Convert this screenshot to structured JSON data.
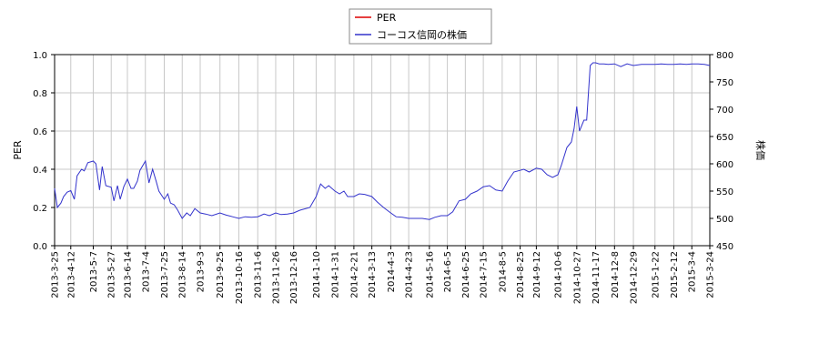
{
  "chart_data": {
    "type": "line",
    "title": "",
    "xlabel": "",
    "ylabel_left": "PER",
    "ylabel_right": "株価",
    "ylim_left": [
      0.0,
      1.0
    ],
    "yticks_left": [
      "0.0",
      "0.2",
      "0.4",
      "0.6",
      "0.8",
      "1.0"
    ],
    "ylim_right": [
      450,
      800
    ],
    "yticks_right": [
      "450",
      "500",
      "550",
      "600",
      "650",
      "700",
      "750",
      "800"
    ],
    "x_range": [
      "2013-3-25",
      "2015-3-24"
    ],
    "x_tick_labels": [
      "2013-3-25",
      "2013-4-12",
      "2013-5-7",
      "2013-5-27",
      "2013-6-14",
      "2013-7-4",
      "2013-7-25",
      "2013-8-14",
      "2013-9-3",
      "2013-9-25",
      "2013-10-16",
      "2013-11-6",
      "2013-11-26",
      "2013-12-16",
      "2014-1-10",
      "2014-1-31",
      "2014-2-21",
      "2014-3-13",
      "2014-4-3",
      "2014-4-23",
      "2014-5-16",
      "2014-6-5",
      "2014-6-25",
      "2014-7-15",
      "2014-8-5",
      "2014-8-25",
      "2014-9-12",
      "2014-10-6",
      "2014-10-27",
      "2014-11-17",
      "2014-12-8",
      "2014-12-29",
      "2015-1-22",
      "2015-2-12",
      "2015-3-4",
      "2015-3-24"
    ],
    "grid": true,
    "legend_position": "top-center",
    "series": [
      {
        "name": "PER",
        "axis": "left",
        "color": "#dd0000",
        "x": [],
        "values": []
      },
      {
        "name": "コーコス信岡の株価",
        "axis": "right",
        "color": "#3333cc",
        "x": [
          "2013-3-25",
          "2013-3-28",
          "2013-4-1",
          "2013-4-4",
          "2013-4-8",
          "2013-4-12",
          "2013-4-16",
          "2013-4-19",
          "2013-4-24",
          "2013-4-27",
          "2013-5-1",
          "2013-5-7",
          "2013-5-10",
          "2013-5-14",
          "2013-5-17",
          "2013-5-21",
          "2013-5-27",
          "2013-5-30",
          "2013-6-3",
          "2013-6-6",
          "2013-6-10",
          "2013-6-14",
          "2013-6-18",
          "2013-6-21",
          "2013-6-25",
          "2013-6-28",
          "2013-7-4",
          "2013-7-8",
          "2013-7-12",
          "2013-7-16",
          "2013-7-19",
          "2013-7-25",
          "2013-7-29",
          "2013-8-1",
          "2013-8-5",
          "2013-8-9",
          "2013-8-14",
          "2013-8-19",
          "2013-8-23",
          "2013-8-28",
          "2013-9-3",
          "2013-9-9",
          "2013-9-16",
          "2013-9-25",
          "2013-10-2",
          "2013-10-9",
          "2013-10-16",
          "2013-10-23",
          "2013-10-30",
          "2013-11-6",
          "2013-11-13",
          "2013-11-19",
          "2013-11-26",
          "2013-12-2",
          "2013-12-9",
          "2013-12-16",
          "2013-12-23",
          "2014-1-3",
          "2014-1-10",
          "2014-1-15",
          "2014-1-20",
          "2014-1-24",
          "2014-1-31",
          "2014-2-5",
          "2014-2-10",
          "2014-2-14",
          "2014-2-21",
          "2014-2-27",
          "2014-3-5",
          "2014-3-13",
          "2014-3-19",
          "2014-3-26",
          "2014-4-3",
          "2014-4-9",
          "2014-4-16",
          "2014-4-23",
          "2014-4-30",
          "2014-5-8",
          "2014-5-16",
          "2014-5-22",
          "2014-5-29",
          "2014-6-5",
          "2014-6-11",
          "2014-6-18",
          "2014-6-25",
          "2014-7-1",
          "2014-7-8",
          "2014-7-15",
          "2014-7-22",
          "2014-7-29",
          "2014-8-5",
          "2014-8-11",
          "2014-8-18",
          "2014-8-25",
          "2014-8-29",
          "2014-9-4",
          "2014-9-12",
          "2014-9-18",
          "2014-9-24",
          "2014-9-30",
          "2014-10-6",
          "2014-10-10",
          "2014-10-16",
          "2014-10-21",
          "2014-10-24",
          "2014-10-27",
          "2014-10-30",
          "2014-11-4",
          "2014-11-7",
          "2014-11-11",
          "2014-11-14",
          "2014-11-17",
          "2014-11-21",
          "2014-11-26",
          "2014-12-1",
          "2014-12-8",
          "2014-12-15",
          "2014-12-22",
          "2014-12-29",
          "2015-1-7",
          "2015-1-14",
          "2015-1-22",
          "2015-1-29",
          "2015-2-5",
          "2015-2-12",
          "2015-2-19",
          "2015-2-26",
          "2015-3-4",
          "2015-3-11",
          "2015-3-18",
          "2015-3-24"
        ],
        "values": [
          555,
          520,
          528,
          540,
          548,
          551,
          535,
          578,
          590,
          587,
          602,
          605,
          600,
          552,
          595,
          560,
          557,
          532,
          560,
          535,
          558,
          572,
          555,
          555,
          568,
          588,
          605,
          565,
          590,
          568,
          550,
          535,
          545,
          528,
          525,
          515,
          500,
          510,
          505,
          518,
          510,
          508,
          505,
          510,
          506,
          503,
          500,
          503,
          502,
          503,
          508,
          505,
          510,
          507,
          508,
          510,
          515,
          520,
          540,
          563,
          555,
          560,
          550,
          545,
          550,
          540,
          540,
          545,
          544,
          540,
          530,
          520,
          510,
          503,
          502,
          500,
          500,
          500,
          498,
          502,
          505,
          505,
          512,
          532,
          535,
          545,
          550,
          558,
          560,
          552,
          550,
          568,
          585,
          588,
          590,
          585,
          592,
          590,
          580,
          575,
          580,
          598,
          630,
          640,
          665,
          705,
          660,
          680,
          680,
          780,
          785,
          785,
          783,
          783,
          782,
          783,
          778,
          783,
          780,
          782,
          782,
          782,
          783,
          782,
          782,
          783,
          782,
          783,
          783,
          782,
          780
        ]
      }
    ]
  }
}
